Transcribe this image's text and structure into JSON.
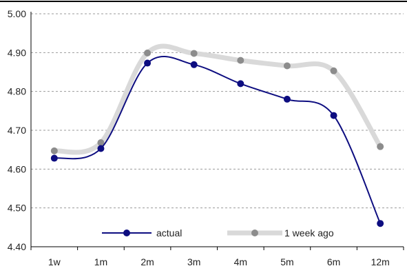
{
  "chart_data": {
    "type": "line",
    "title": "",
    "xlabel": "",
    "ylabel": "",
    "categories": [
      "1w",
      "1m",
      "2m",
      "3m",
      "4m",
      "5m",
      "6m",
      "12m"
    ],
    "ylim": [
      4.4,
      5.0
    ],
    "yticks": [
      "4.40",
      "4.50",
      "4.60",
      "4.70",
      "4.80",
      "4.90",
      "5.00"
    ],
    "grid": "horizontal dashed",
    "legend_position": "bottom",
    "series": [
      {
        "name": "actual",
        "color": "#0d0d80",
        "values": [
          4.628,
          4.653,
          4.873,
          4.869,
          4.82,
          4.78,
          4.738,
          4.46
        ]
      },
      {
        "name": "1 week ago",
        "color": "#d9d9d9",
        "marker_color": "#8c8c8c",
        "values": [
          4.647,
          4.668,
          4.899,
          4.898,
          4.88,
          4.866,
          4.853,
          4.658
        ]
      }
    ]
  }
}
